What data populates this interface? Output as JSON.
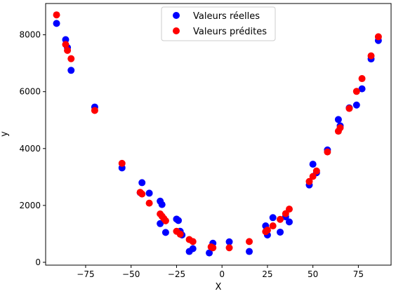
{
  "chart_data": {
    "type": "scatter",
    "title": "",
    "xlabel": "X",
    "ylabel": "y",
    "xlim": [
      -97,
      93
    ],
    "ylim": [
      -100,
      9100
    ],
    "xticks": [
      -75,
      -50,
      -25,
      0,
      25,
      50,
      75
    ],
    "yticks": [
      0,
      2000,
      4000,
      6000,
      8000
    ],
    "grid": false,
    "legend_position": "top-center",
    "series": [
      {
        "name": "Valeurs réelles",
        "color": "#0000ff",
        "points": [
          [
            -91,
            8400
          ],
          [
            -86,
            7830
          ],
          [
            -85,
            7550
          ],
          [
            -83,
            6750
          ],
          [
            -70,
            5460
          ],
          [
            -55,
            3320
          ],
          [
            -44,
            2800
          ],
          [
            -45,
            2450
          ],
          [
            -40,
            2430
          ],
          [
            -34,
            1360
          ],
          [
            -34,
            2150
          ],
          [
            -33,
            2030
          ],
          [
            -31,
            1050
          ],
          [
            -25,
            1520
          ],
          [
            -24,
            1470
          ],
          [
            -23,
            1090
          ],
          [
            -22,
            960
          ],
          [
            -18,
            380
          ],
          [
            -16,
            480
          ],
          [
            -7,
            330
          ],
          [
            -5,
            670
          ],
          [
            4,
            720
          ],
          [
            15,
            380
          ],
          [
            24,
            1280
          ],
          [
            25,
            960
          ],
          [
            28,
            1570
          ],
          [
            32,
            1060
          ],
          [
            35,
            1600
          ],
          [
            37,
            1420
          ],
          [
            48,
            2720
          ],
          [
            50,
            3450
          ],
          [
            52,
            3150
          ],
          [
            58,
            3950
          ],
          [
            64,
            5020
          ],
          [
            65,
            4800
          ],
          [
            70,
            5430
          ],
          [
            74,
            5530
          ],
          [
            77,
            6100
          ],
          [
            82,
            7150
          ],
          [
            86,
            7800
          ]
        ]
      },
      {
        "name": "Valeurs prédites",
        "color": "#ff0000",
        "points": [
          [
            -91,
            8700
          ],
          [
            -86,
            7660
          ],
          [
            -85,
            7450
          ],
          [
            -83,
            7160
          ],
          [
            -70,
            5340
          ],
          [
            -55,
            3480
          ],
          [
            -45,
            2460
          ],
          [
            -44,
            2400
          ],
          [
            -40,
            2080
          ],
          [
            -34,
            1700
          ],
          [
            -33,
            1620
          ],
          [
            -32,
            1540
          ],
          [
            -31,
            1460
          ],
          [
            -25,
            1090
          ],
          [
            -23,
            990
          ],
          [
            -18,
            800
          ],
          [
            -16,
            730
          ],
          [
            -6,
            540
          ],
          [
            -5,
            510
          ],
          [
            4,
            510
          ],
          [
            15,
            730
          ],
          [
            24,
            1080
          ],
          [
            25,
            1130
          ],
          [
            28,
            1280
          ],
          [
            32,
            1510
          ],
          [
            35,
            1710
          ],
          [
            37,
            1870
          ],
          [
            48,
            2840
          ],
          [
            50,
            3020
          ],
          [
            52,
            3210
          ],
          [
            58,
            3880
          ],
          [
            64,
            4610
          ],
          [
            65,
            4730
          ],
          [
            70,
            5410
          ],
          [
            74,
            6010
          ],
          [
            77,
            6460
          ],
          [
            82,
            7260
          ],
          [
            86,
            7930
          ]
        ]
      }
    ]
  }
}
